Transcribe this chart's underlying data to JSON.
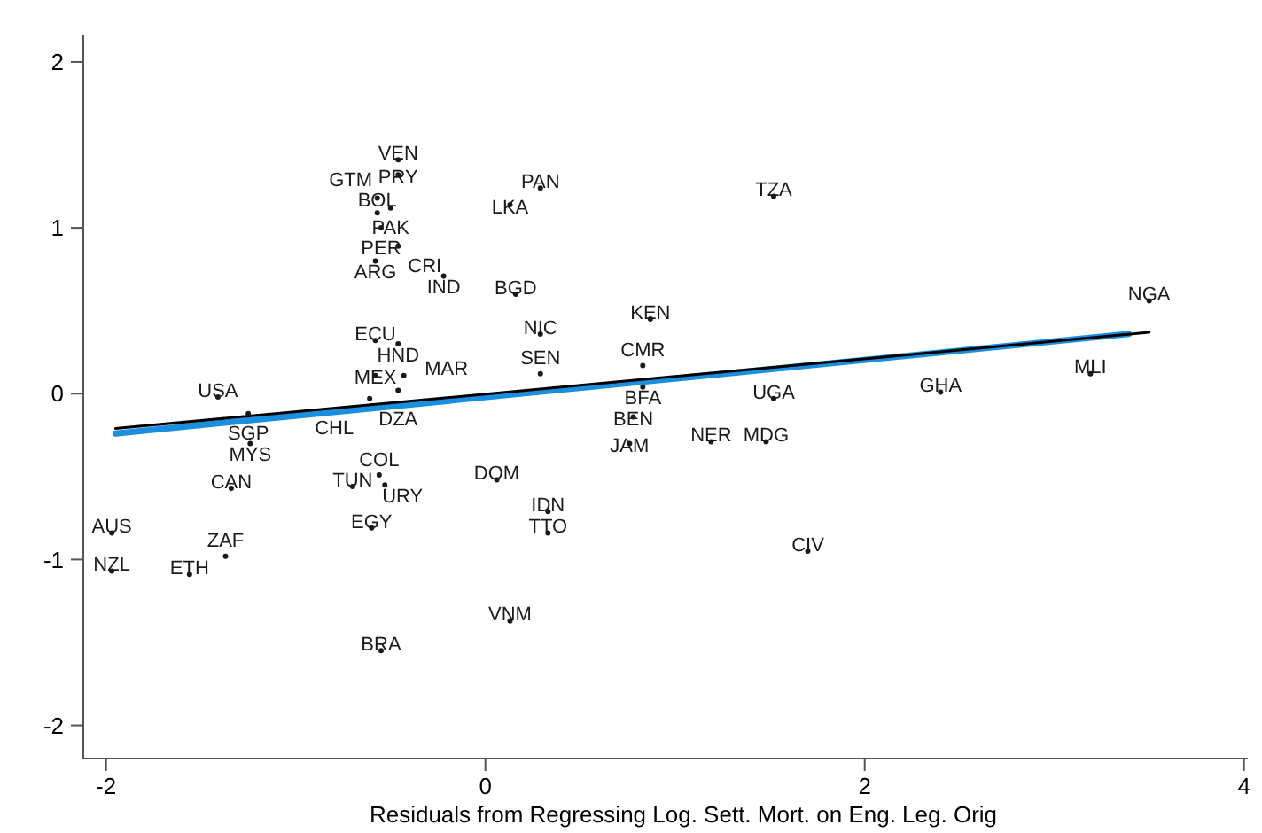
{
  "chart_data": {
    "type": "scatter",
    "xlabel": "Residuals from Regressing Log. Sett. Mort. on Eng. Leg. Orig",
    "xlim": [
      -2.12,
      4.02
    ],
    "ylim": [
      -2.2,
      2.16
    ],
    "xticks": [
      -2,
      0,
      2,
      4
    ],
    "yticks": [
      -2,
      -1,
      0,
      1,
      2
    ],
    "grid": false,
    "series": [
      {
        "marker": "circle",
        "color": "#1a1a1a",
        "x": [
          -0.46,
          -0.46,
          -0.57,
          -0.5,
          -0.57,
          -0.55,
          -0.46,
          -0.58,
          -0.22,
          0.29,
          0.13,
          0.16,
          0.29,
          0.87,
          -0.58,
          -0.46,
          -0.58,
          -0.43,
          -0.46,
          -0.61,
          0.29,
          0.83,
          0.83,
          0.78,
          0.76,
          1.19,
          1.48,
          1.52,
          1.52,
          3.5,
          3.19,
          2.4,
          1.7,
          -1.41,
          -1.25,
          -1.24,
          -1.34,
          -1.97,
          -1.97,
          -1.56,
          -1.37,
          -0.7,
          -0.56,
          -0.53,
          -0.6,
          -0.55,
          0.06,
          0.13,
          0.33,
          0.33
        ],
        "values": [
          1.41,
          1.32,
          1.18,
          1.12,
          1.09,
          1.0,
          0.89,
          0.8,
          0.71,
          1.24,
          1.14,
          0.6,
          0.36,
          0.45,
          0.32,
          0.3,
          0.11,
          0.11,
          0.02,
          -0.03,
          0.12,
          0.17,
          0.04,
          -0.14,
          -0.3,
          -0.29,
          -0.29,
          -0.03,
          1.19,
          0.56,
          0.12,
          0.01,
          -0.95,
          -0.02,
          -0.12,
          -0.3,
          -0.57,
          -0.84,
          -1.07,
          -1.09,
          -0.98,
          -0.56,
          -0.49,
          -0.55,
          -0.81,
          -1.55,
          -0.52,
          -1.37,
          -0.71,
          -0.84
        ],
        "value_labels": [
          "VEN",
          "PRY",
          "BOL",
          "PAK",
          "GTM",
          "PER",
          "CRI",
          "ARG",
          "IND",
          "PAN",
          "LKA",
          "BGD",
          "NIC",
          "KEN",
          "ECU",
          "HND",
          "MEX",
          "MAR",
          "DZA",
          "CHL",
          "SEN",
          "CMR",
          "BFA",
          "BEN",
          "JAM",
          "NER",
          "MDG",
          "UGA",
          "TZA",
          "NGA",
          "MLI",
          "GHA",
          "CIV",
          "USA",
          "SGP",
          "MYS",
          "CAN",
          "AUS",
          "NZL",
          "ETH",
          "ZAF",
          "TUN",
          "COL",
          "URY",
          "EGY",
          "BRA",
          "DOM",
          "VNM",
          "IDN",
          "TTO"
        ]
      },
      {
        "type": "line",
        "color": "#1a8fe0",
        "line_style": "solid",
        "x": [
          -1.95,
          3.39
        ],
        "values": [
          -0.24,
          0.36
        ]
      },
      {
        "type": "line",
        "color": "#000000",
        "line_style": "solid",
        "x": [
          -1.95,
          3.5
        ],
        "values": [
          -0.21,
          0.37
        ]
      }
    ]
  }
}
